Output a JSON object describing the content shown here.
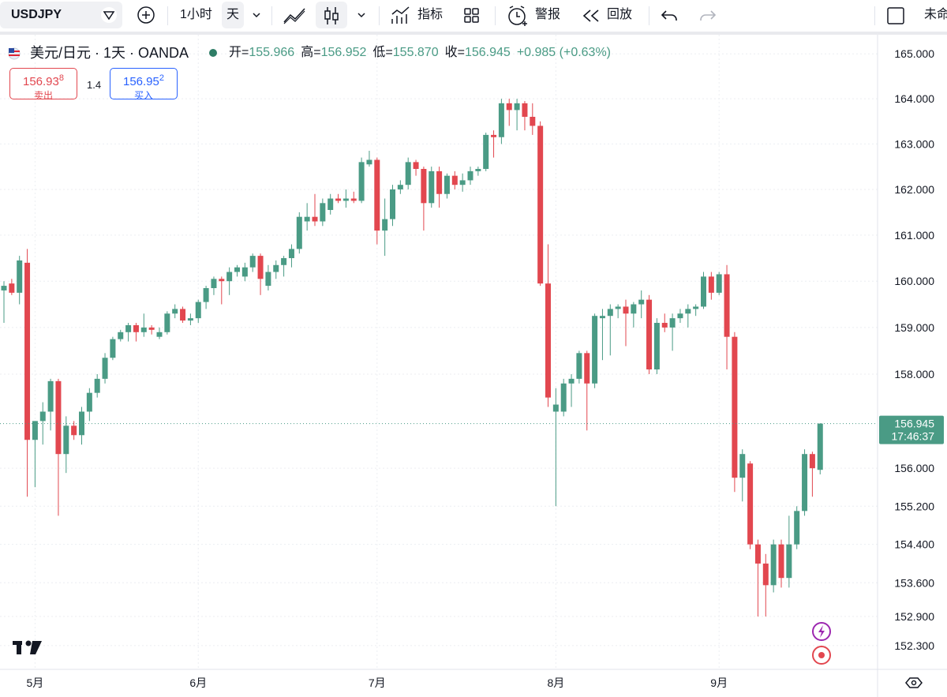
{
  "toolbar": {
    "symbol": "USDJPY",
    "interval": "1小时",
    "interval_active": "天",
    "indicators": "指标",
    "alerts": "警报",
    "replay": "回放",
    "layout": "未命"
  },
  "legend": {
    "title": "美元/日元 · 1天 · OANDA",
    "open_label": "开=",
    "open": "155.966",
    "high_label": "高=",
    "high": "156.952",
    "low_label": "低=",
    "low": "155.870",
    "close_label": "收=",
    "close": "156.945",
    "change": "+0.985 (+0.63%)"
  },
  "trade": {
    "sell_price": "156.93",
    "sell_pip": "8",
    "sell_label": "卖出",
    "spread": "1.4",
    "buy_price": "156.95",
    "buy_pip": "2",
    "buy_label": "买入"
  },
  "chart_data": {
    "type": "candlestick",
    "categories": [
      null,
      null,
      null,
      null,
      "5月",
      null,
      null,
      null,
      null,
      null,
      null,
      null,
      null,
      null,
      null,
      null,
      null,
      null,
      null,
      null,
      null,
      null,
      null,
      null,
      null,
      "6月",
      null,
      null,
      null,
      null,
      null,
      null,
      null,
      null,
      null,
      null,
      null,
      null,
      null,
      null,
      null,
      null,
      null,
      null,
      null,
      null,
      null,
      null,
      "7月",
      null,
      null,
      null,
      null,
      null,
      null,
      null,
      null,
      null,
      null,
      null,
      null,
      null,
      null,
      null,
      null,
      null,
      null,
      null,
      null,
      null,
      null,
      "8月",
      null,
      null,
      null,
      null,
      null,
      null,
      null,
      null,
      null,
      null,
      null,
      null,
      null,
      null,
      null,
      null,
      null,
      null,
      null,
      null,
      "9月",
      null,
      null,
      null,
      null,
      null,
      null,
      null,
      null,
      null,
      null,
      null,
      null,
      null
    ],
    "open": [
      159.8,
      159.95,
      159.75,
      160.4,
      156.6,
      157.0,
      157.2,
      157.85,
      156.3,
      156.9,
      156.7,
      157.2,
      157.6,
      157.9,
      158.35,
      158.75,
      158.9,
      159.05,
      158.9,
      159.0,
      158.8,
      158.9,
      159.3,
      159.4,
      159.15,
      159.2,
      159.55,
      159.85,
      160.05,
      160.0,
      160.2,
      160.1,
      160.3,
      160.55,
      159.9,
      160.2,
      160.35,
      160.5,
      160.7,
      161.3,
      161.4,
      161.3,
      161.55,
      161.8,
      161.75,
      161.8,
      161.75,
      162.55,
      162.65,
      161.1,
      161.35,
      162.0,
      162.1,
      162.6,
      162.45,
      161.7,
      162.4,
      161.9,
      162.3,
      162.1,
      162.2,
      162.4,
      162.45,
      163.2,
      163.15,
      163.9,
      163.75,
      163.9,
      163.6,
      163.4,
      159.95,
      157.2,
      157.2,
      157.8,
      157.9,
      158.45,
      157.8,
      159.2,
      159.25,
      159.4,
      159.45,
      159.3,
      159.5,
      159.6,
      158.1,
      159.1,
      159.0,
      159.2,
      159.3,
      159.4,
      159.45,
      160.1,
      159.75,
      160.15,
      158.8,
      155.8,
      156.1,
      154.4,
      154.0,
      153.55,
      154.4,
      153.7,
      154.4,
      155.1,
      156.3,
      155.966
    ],
    "high": [
      160.0,
      160.05,
      160.55,
      160.7,
      157.0,
      157.4,
      157.9,
      157.9,
      157.1,
      157.0,
      157.3,
      157.7,
      158.0,
      158.45,
      158.8,
      158.95,
      159.1,
      159.1,
      159.3,
      159.05,
      159.0,
      159.35,
      159.5,
      159.45,
      159.3,
      159.6,
      159.9,
      160.1,
      160.1,
      160.3,
      160.35,
      160.4,
      160.6,
      160.6,
      160.35,
      160.45,
      160.55,
      160.8,
      161.5,
      161.7,
      161.9,
      161.8,
      161.9,
      161.9,
      162.0,
      161.95,
      162.7,
      162.85,
      162.7,
      161.8,
      162.1,
      162.2,
      162.7,
      162.65,
      162.5,
      162.5,
      162.5,
      162.35,
      162.4,
      162.35,
      162.5,
      162.5,
      163.25,
      163.3,
      164.0,
      164.0,
      164.0,
      163.95,
      163.9,
      163.5,
      160.8,
      157.7,
      157.9,
      158.0,
      158.5,
      158.5,
      159.3,
      159.4,
      159.5,
      159.5,
      159.6,
      159.55,
      159.8,
      159.7,
      159.2,
      159.3,
      159.3,
      159.4,
      159.5,
      159.5,
      160.2,
      160.2,
      160.2,
      160.35,
      158.9,
      156.4,
      156.15,
      154.5,
      154.2,
      154.5,
      154.5,
      155.0,
      155.2,
      156.4,
      156.35,
      156.952
    ],
    "low": [
      159.1,
      159.7,
      159.5,
      155.4,
      155.6,
      156.5,
      156.8,
      155.0,
      155.9,
      156.6,
      156.5,
      157.0,
      157.5,
      157.8,
      158.3,
      158.7,
      158.7,
      158.7,
      158.8,
      158.85,
      158.75,
      158.85,
      159.2,
      159.1,
      159.05,
      159.1,
      159.4,
      159.7,
      159.5,
      159.7,
      160.1,
      160.0,
      160.2,
      159.7,
      159.8,
      160.05,
      160.1,
      160.3,
      160.6,
      161.1,
      161.2,
      161.2,
      161.45,
      161.7,
      161.6,
      161.7,
      161.7,
      162.5,
      160.8,
      160.55,
      161.2,
      161.9,
      162.0,
      162.3,
      161.1,
      161.6,
      161.6,
      161.8,
      162.0,
      161.95,
      162.1,
      162.3,
      162.4,
      162.7,
      163.0,
      163.4,
      163.3,
      163.3,
      163.2,
      159.9,
      157.3,
      155.2,
      157.1,
      157.3,
      157.8,
      156.8,
      157.7,
      158.3,
      158.4,
      159.2,
      158.6,
      159.0,
      159.2,
      158.0,
      158.0,
      158.9,
      158.5,
      159.1,
      159.0,
      159.25,
      159.4,
      159.6,
      159.7,
      158.1,
      155.5,
      155.3,
      154.3,
      152.9,
      152.9,
      153.4,
      153.5,
      153.5,
      154.3,
      155.0,
      155.4,
      155.87
    ],
    "close": [
      159.9,
      159.75,
      160.45,
      156.6,
      157.0,
      157.2,
      157.85,
      156.3,
      156.9,
      156.7,
      157.2,
      157.6,
      157.9,
      158.35,
      158.75,
      158.9,
      159.05,
      158.9,
      159.0,
      158.95,
      158.9,
      159.3,
      159.4,
      159.15,
      159.2,
      159.55,
      159.85,
      160.05,
      160.0,
      160.2,
      160.3,
      160.3,
      160.55,
      160.05,
      160.2,
      160.35,
      160.5,
      160.7,
      161.4,
      161.4,
      161.3,
      161.7,
      161.8,
      161.75,
      161.8,
      161.75,
      162.6,
      162.65,
      161.1,
      161.35,
      162.0,
      162.1,
      162.6,
      162.45,
      161.7,
      162.4,
      161.9,
      162.3,
      162.1,
      162.2,
      162.4,
      162.45,
      163.2,
      163.15,
      163.9,
      163.75,
      163.9,
      163.6,
      163.4,
      159.95,
      157.5,
      157.35,
      157.8,
      157.9,
      158.45,
      157.8,
      159.25,
      159.25,
      159.4,
      159.45,
      159.3,
      159.5,
      159.6,
      158.1,
      159.1,
      159.0,
      159.2,
      159.3,
      159.4,
      159.45,
      160.1,
      159.75,
      160.15,
      158.8,
      155.8,
      156.3,
      154.4,
      154.0,
      153.55,
      154.4,
      153.7,
      154.4,
      155.1,
      156.3,
      156.0,
      156.945
    ],
    "up_color": "#4a9b85",
    "down_color": "#e2474f",
    "ylim": [
      151.81,
      165.41
    ],
    "log_scale": true,
    "grid": true,
    "yticks": [
      {
        "value": 165,
        "label": "165.000"
      },
      {
        "value": 164,
        "label": "164.000"
      },
      {
        "value": 163,
        "label": "163.000"
      },
      {
        "value": 162,
        "label": "162.000"
      },
      {
        "value": 161,
        "label": "161.000"
      },
      {
        "value": 160,
        "label": "160.000"
      },
      {
        "value": 159,
        "label": "159.000"
      },
      {
        "value": 158,
        "label": "158.000"
      },
      {
        "value": 156,
        "label": "156.000"
      },
      {
        "value": 155.2,
        "label": "155.200"
      },
      {
        "value": 154.4,
        "label": "154.400"
      },
      {
        "value": 153.6,
        "label": "153.600"
      },
      {
        "value": 152.9,
        "label": "152.900"
      },
      {
        "value": 152.3,
        "label": "152.300"
      }
    ],
    "price_tag": {
      "label": "156.945",
      "time": "17:46:37"
    }
  }
}
